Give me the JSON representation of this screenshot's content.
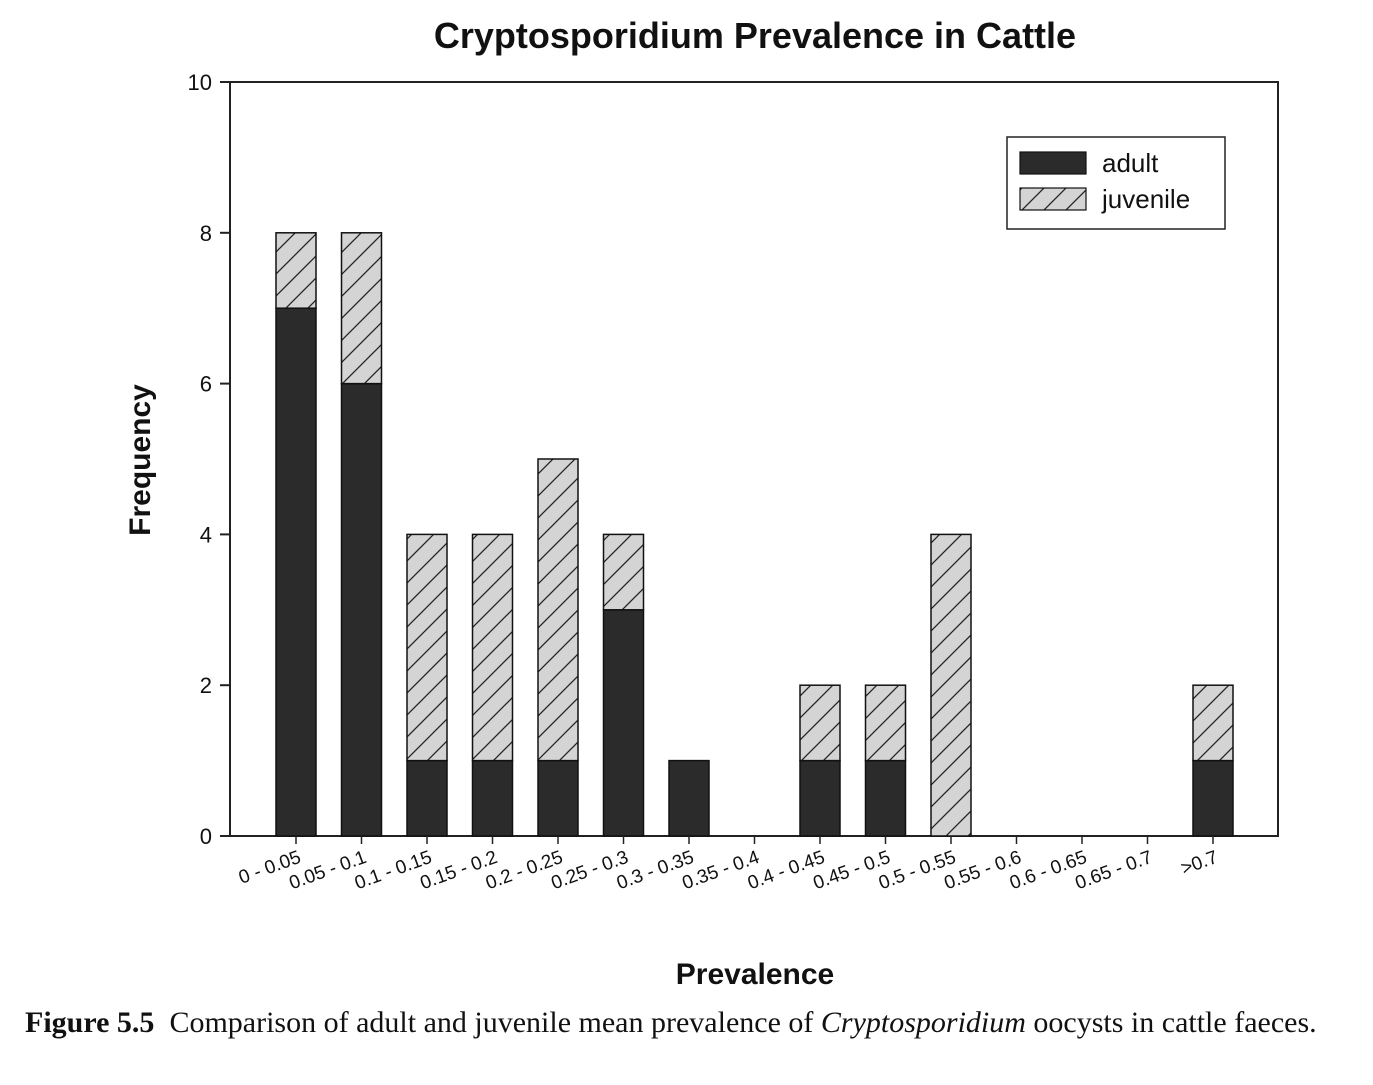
{
  "chart_data": {
    "type": "bar",
    "stacked": true,
    "title": "Cryptosporidium Prevalence in Cattle",
    "xlabel": "Prevalence",
    "ylabel": "Frequency",
    "ylim": [
      0,
      10
    ],
    "yticks": [
      "0",
      "2",
      "4",
      "6",
      "8",
      "10"
    ],
    "grid": false,
    "legend_position": "top-right",
    "categories": [
      "0 - 0.05",
      "0.05 - 0.1",
      "0.1 - 0.15",
      "0.15 - 0.2",
      "0.2 - 0.25",
      "0.25 - 0.3",
      "0.3 - 0.35",
      "0.35 - 0.4",
      "0.4 - 0.45",
      "0.45 - 0.5",
      "0.5 - 0.55",
      "0.55 - 0.6",
      "0.6 - 0.65",
      "0.65 - 0.7",
      ">0.7"
    ],
    "series": [
      {
        "name": "adult",
        "values": [
          7,
          6,
          1,
          1,
          1,
          3,
          1,
          0,
          1,
          1,
          0,
          0,
          0,
          0,
          1
        ],
        "color": "#2b2b2b",
        "pattern": "solid"
      },
      {
        "name": "juvenile",
        "values": [
          1,
          2,
          3,
          3,
          4,
          1,
          0,
          0,
          1,
          1,
          4,
          0,
          0,
          0,
          1
        ],
        "color": "#d4d4d4",
        "pattern": "hatched"
      }
    ]
  },
  "caption": {
    "label": "Figure 5.5",
    "text_before": "Comparison of adult and juvenile mean prevalence of",
    "italic": "Cryptosporidium",
    "text_after": "oocysts in cattle faeces."
  }
}
